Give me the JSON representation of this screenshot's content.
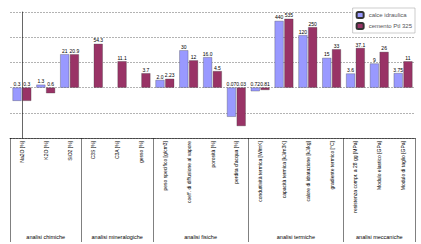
{
  "chart_data": {
    "type": "bar",
    "categories": [
      "Na2O [%]",
      "K2O [%]",
      "SiO2 [%]",
      "C3S [%]",
      "C3A [%]",
      "gesso [%]",
      "peso specifico [g/cm3]",
      "coeff. di diffusione al vapore",
      "porosità [%]",
      "perdita d'acqua [%]",
      "conduttività termica [W/mK]",
      "capacità termica [kJ/m3K]",
      "calore di idratazione [kJ/kg]",
      "gradiente termico [°C]",
      "resistenza compr. a 28 gg [MPa]",
      "Modulo elastico [GPa]",
      "Modulo di taglio [GPa]"
    ],
    "groups": [
      "analisi chimiche",
      "analisi chimiche",
      "analisi chimiche",
      "analisi mineralogiche",
      "analisi mineralogiche",
      "analisi mineralogiche",
      "analisi fisiche",
      "analisi fisiche",
      "analisi fisiche",
      "analisi fisiche",
      "analisi termiche",
      "analisi termiche",
      "analisi termiche",
      "analisi termiche",
      "analisi meccaniche",
      "analisi meccaniche",
      "analisi meccaniche"
    ],
    "series": [
      {
        "name": "calce idraulica",
        "color": "#9999ff",
        "values": [
          0.3,
          1.3,
          21,
          null,
          null,
          null,
          2,
          30,
          16,
          0.07,
          0.72,
          440,
          120,
          15,
          3.6,
          9,
          3.75
        ],
        "value_labels": [
          "0.3",
          "1.3",
          "21",
          null,
          null,
          null,
          "2.0",
          "30",
          "16.0",
          "0.07",
          "0.72",
          "440",
          "120",
          "15",
          "3.6",
          "9",
          "3.75"
        ]
      },
      {
        "name": "cemento Ptl 325",
        "color": "#993366",
        "values": [
          0.3,
          0.6,
          20.9,
          54.3,
          11.1,
          3.7,
          2.23,
          12,
          4.5,
          0.03,
          0.81,
          535,
          250,
          33,
          37.1,
          26,
          11
        ],
        "value_labels": [
          "0.3",
          "0.6",
          "20.9",
          "54.3",
          "11.1",
          "3.7",
          "2.23",
          "12",
          "4.5",
          "0.03",
          "0.81",
          "535",
          "250",
          "33",
          "37.1",
          "26",
          "11"
        ]
      }
    ],
    "log": "y",
    "ylim": [
      0.01,
      1000
    ],
    "yticks": [
      0.01,
      0.1,
      1,
      10,
      100,
      1000
    ],
    "tick_labels": "x",
    "grid": true,
    "legend": "top-right",
    "data_labels": true
  }
}
